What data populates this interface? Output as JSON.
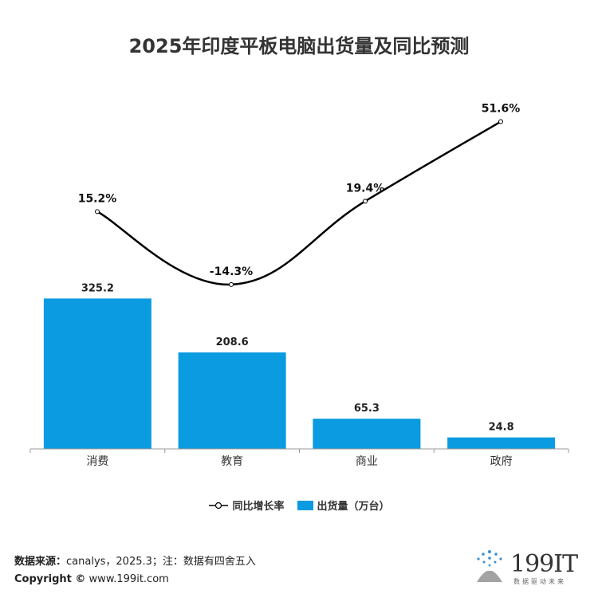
{
  "chart_data": {
    "type": "bar",
    "title": "2025年印度平板电脑出货量及同比预测",
    "categories": [
      "消费",
      "教育",
      "商业",
      "政府"
    ],
    "series": [
      {
        "name": "出货量（万台）",
        "type": "bar",
        "values": [
          325.2,
          208.6,
          65.3,
          24.8
        ],
        "labels": [
          "325.2",
          "208.6",
          "65.3",
          "24.8"
        ],
        "color": "#0A9BE0"
      },
      {
        "name": "同比增长率",
        "type": "line",
        "values": [
          15.2,
          -14.3,
          19.4,
          51.6
        ],
        "labels": [
          "15.2%",
          "-14.3%",
          "19.4%",
          "51.6%"
        ],
        "color": "#000000"
      }
    ],
    "legend_position": "bottom",
    "grid": false
  },
  "footer": {
    "source_label": "数据来源：",
    "source_text": "canalys，2025.3；注：数据有四舍五入",
    "copyright_label": "Copyright ©",
    "copyright_text": " www.199it.com"
  },
  "logo": {
    "text": "199IT",
    "tagline": "数据驱动未来"
  }
}
